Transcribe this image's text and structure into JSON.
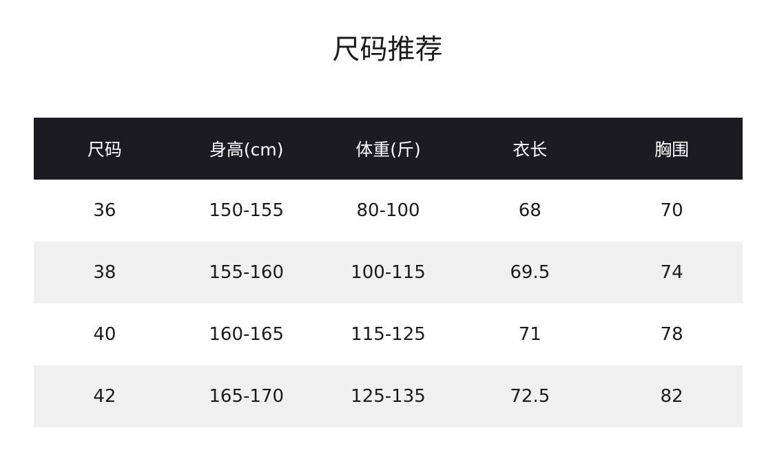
{
  "title": "尺码推荐",
  "table": {
    "headers": [
      "尺码",
      "身高(cm)",
      "体重(斤)",
      "衣长",
      "胸围"
    ],
    "rows": [
      [
        "36",
        "150-155",
        "80-100",
        "68",
        "70"
      ],
      [
        "38",
        "155-160",
        "100-115",
        "69.5",
        "74"
      ],
      [
        "40",
        "160-165",
        "115-125",
        "71",
        "78"
      ],
      [
        "42",
        "165-170",
        "125-135",
        "72.5",
        "82"
      ]
    ]
  },
  "colors": {
    "header_bg": "#1b1b21",
    "alt_row_bg": "#f0f0f0"
  }
}
